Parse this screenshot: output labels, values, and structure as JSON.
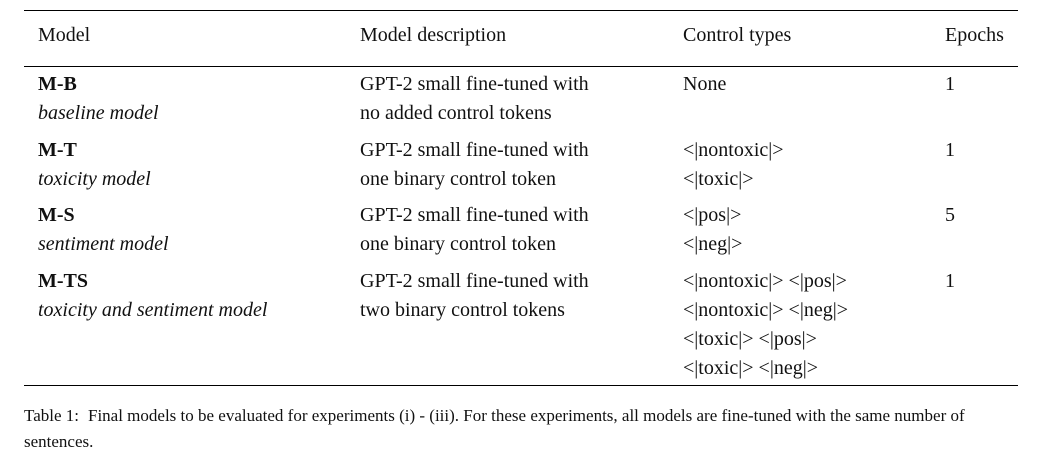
{
  "table": {
    "headers": [
      "Model",
      "Model description",
      "Control types",
      "Epochs"
    ],
    "rows": [
      {
        "code": "M-B",
        "name": "baseline model",
        "description": [
          "GPT-2 small fine-tuned with",
          "no added control tokens"
        ],
        "controls": [
          "None"
        ],
        "epochs": "1"
      },
      {
        "code": "M-T",
        "name": "toxicity model",
        "description": [
          "GPT-2 small fine-tuned with",
          "one binary control token"
        ],
        "controls": [
          "<|nontoxic|>",
          "<|toxic|>"
        ],
        "epochs": "1"
      },
      {
        "code": "M-S",
        "name": "sentiment model",
        "description": [
          "GPT-2 small fine-tuned with",
          "one binary control token"
        ],
        "controls": [
          "<|pos|>",
          "<|neg|>"
        ],
        "epochs": "5"
      },
      {
        "code": "M-TS",
        "name": "toxicity and sentiment model",
        "description": [
          "GPT-2 small fine-tuned with",
          "two binary control tokens"
        ],
        "controls": [
          "<|nontoxic|> <|pos|>",
          "<|nontoxic|> <|neg|>",
          "<|toxic|> <|pos|>",
          "<|toxic|> <|neg|>"
        ],
        "epochs": "1"
      }
    ]
  },
  "caption": {
    "label": "Table 1:",
    "text": "Final models to be evaluated for experiments (i) - (iii). For these experiments, all models are fine-tuned with the same number of sentences."
  }
}
